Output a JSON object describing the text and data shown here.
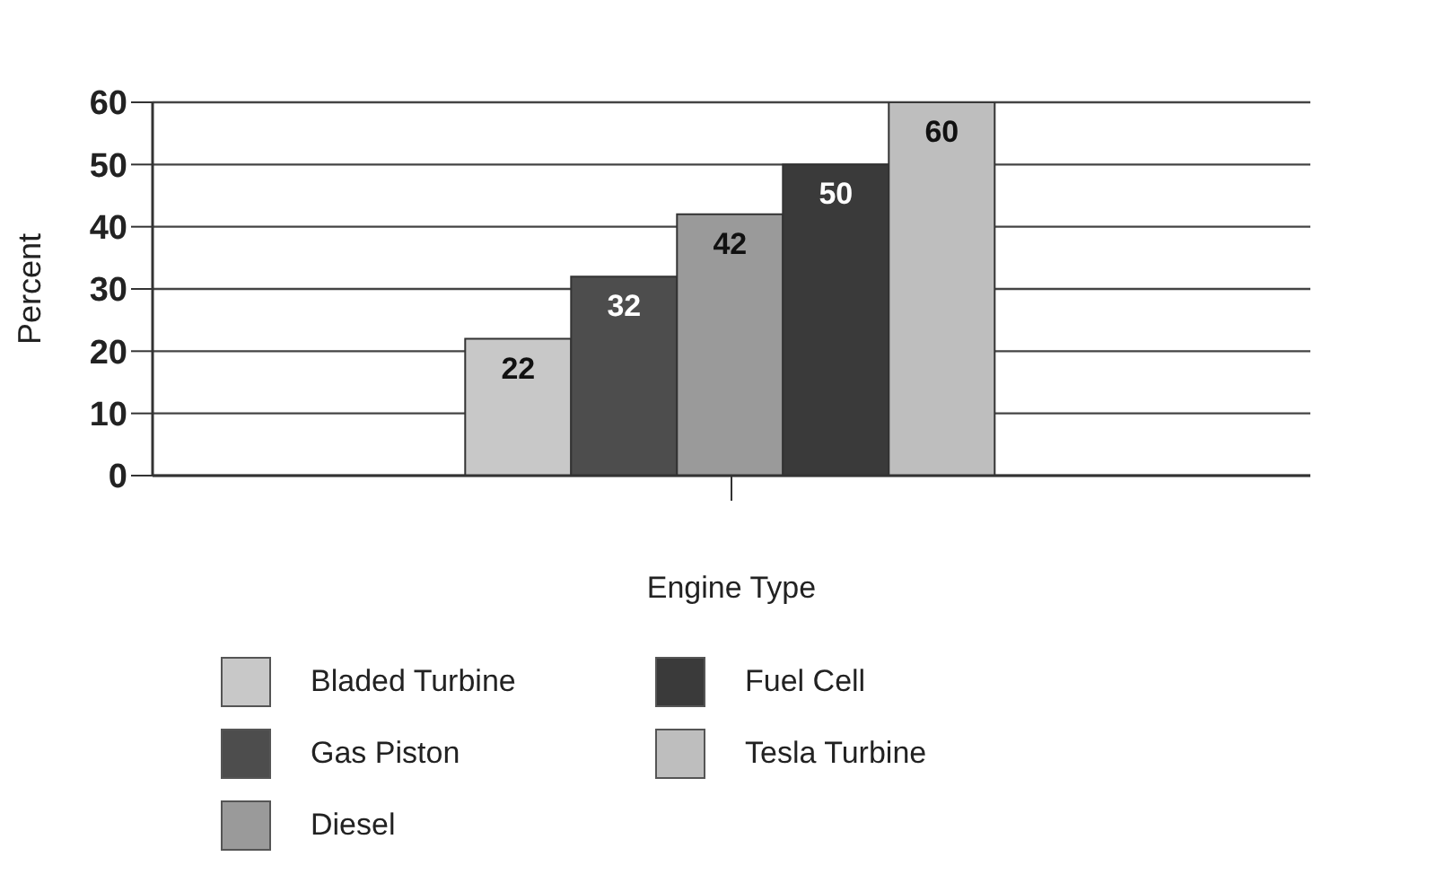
{
  "chart_data": {
    "type": "bar",
    "xlabel": "Engine Type",
    "ylabel": "Percent",
    "categories": [
      null
    ],
    "series": [
      {
        "name": "Bladed Turbine",
        "color": "#c8c8c8",
        "values": [
          22
        ]
      },
      {
        "name": "Gas Piston",
        "color": "#4d4d4d",
        "values": [
          32
        ]
      },
      {
        "name": "Diesel",
        "color": "#9a9a9a",
        "values": [
          42
        ]
      },
      {
        "name": "Fuel Cell",
        "color": "#3a3a3a",
        "values": [
          50
        ]
      },
      {
        "name": "Tesla Turbine",
        "color": "#bebebe",
        "values": [
          60
        ]
      }
    ],
    "ylim": [
      0,
      60
    ],
    "yticks": [
      0,
      10,
      20,
      30,
      40,
      50,
      60
    ],
    "grid": "y",
    "legend": "bottom",
    "data_labels": true
  }
}
